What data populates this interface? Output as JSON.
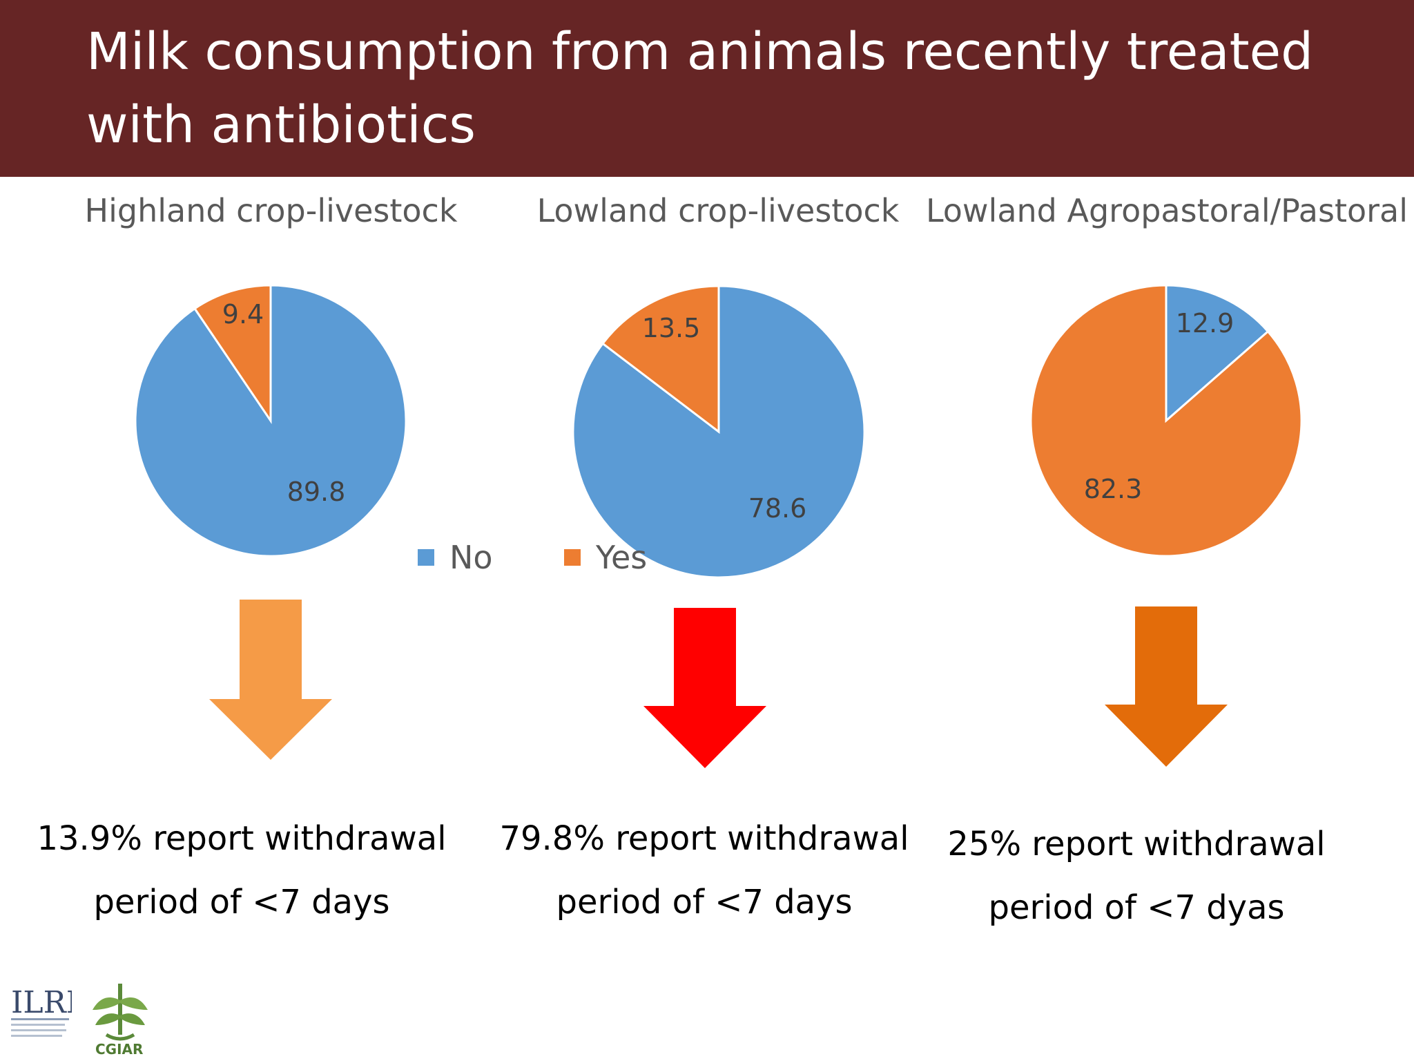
{
  "title": "Milk consumption from animals recently treated with antibiotics",
  "legend": [
    {
      "label": "No",
      "color": "#5b9bd5"
    },
    {
      "label": "Yes",
      "color": "#ed7d31"
    }
  ],
  "chart_data": [
    {
      "type": "pie",
      "title": "Highland crop-livestock",
      "slices": [
        {
          "label": "No",
          "value": 89.8,
          "color": "#5b9bd5"
        },
        {
          "label": "Yes",
          "value": 9.4,
          "color": "#ed7d31"
        }
      ]
    },
    {
      "type": "pie",
      "title": "Lowland crop-livestock",
      "slices": [
        {
          "label": "No",
          "value": 78.6,
          "color": "#5b9bd5"
        },
        {
          "label": "Yes",
          "value": 13.5,
          "color": "#ed7d31"
        }
      ]
    },
    {
      "type": "pie",
      "title": "Lowland Agropastoral/Pastoral",
      "slices": [
        {
          "label": "No",
          "value": 12.9,
          "color": "#5b9bd5"
        },
        {
          "label": "Yes",
          "value": 82.3,
          "color": "#ed7d31"
        }
      ]
    }
  ],
  "arrows": [
    {
      "color": "#f59b47"
    },
    {
      "color": "#ff0000"
    },
    {
      "color": "#e36c0a"
    }
  ],
  "captions": [
    {
      "line1": "13.9% report withdrawal",
      "line2": "period of <7 days"
    },
    {
      "line1": "79.8% report withdrawal",
      "line2": "period of <7 days"
    },
    {
      "line1": "25% report withdrawal",
      "line2": "period of <7 dyas"
    }
  ],
  "logos": {
    "ilri": "ILRI",
    "cgiar": "CGIAR"
  }
}
